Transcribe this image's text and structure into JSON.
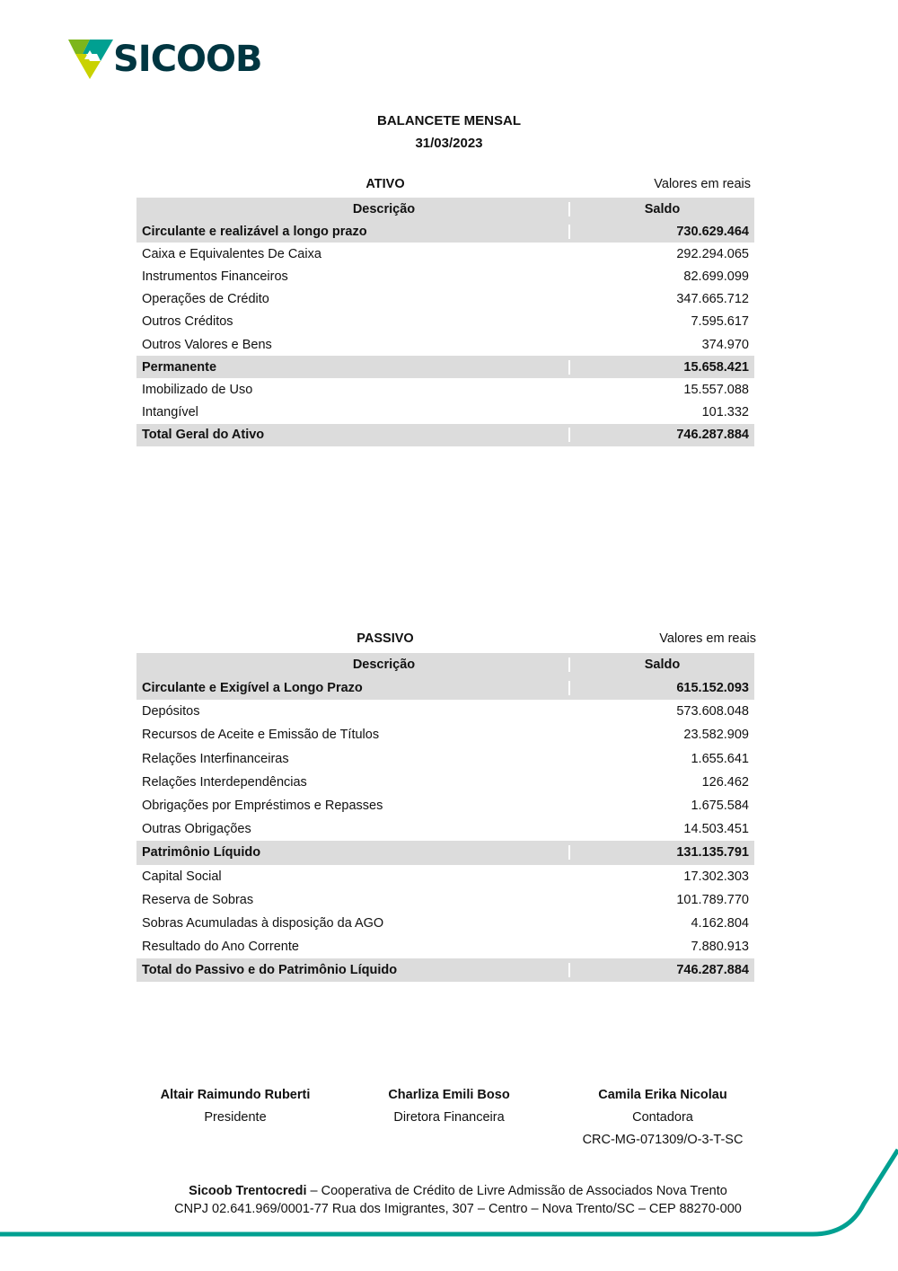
{
  "logo": {
    "text": "SICOOB",
    "colors": {
      "dark": "#003641",
      "teal": "#00a091",
      "green": "#7db61c",
      "lime": "#c9d200"
    }
  },
  "title": {
    "line1": "BALANCETE MENSAL",
    "line2": "31/03/2023"
  },
  "ativo": {
    "caption": "ATIVO",
    "unit": "Valores em reais",
    "headers": {
      "descricao": "Descrição",
      "saldo": "Saldo"
    },
    "rows": [
      {
        "label": "Circulante e realizável a longo prazo",
        "value": "730.629.464",
        "group": true
      },
      {
        "label": "Caixa e Equivalentes De Caixa",
        "value": "292.294.065"
      },
      {
        "label": "Instrumentos Financeiros",
        "value": "82.699.099"
      },
      {
        "label": "Operações de Crédito",
        "value": "347.665.712"
      },
      {
        "label": "Outros Créditos",
        "value": "7.595.617"
      },
      {
        "label": "Outros Valores e Bens",
        "value": "374.970"
      },
      {
        "label": "Permanente",
        "value": "15.658.421",
        "group": true
      },
      {
        "label": "Imobilizado de Uso",
        "value": "15.557.088"
      },
      {
        "label": "Intangível",
        "value": "101.332"
      },
      {
        "label": "Total Geral do Ativo",
        "value": "746.287.884",
        "group": true
      }
    ]
  },
  "passivo": {
    "caption": "PASSIVO",
    "unit": "Valores em reais",
    "headers": {
      "descricao": "Descrição",
      "saldo": "Saldo"
    },
    "rows": [
      {
        "label": "Circulante e Exigível a Longo Prazo",
        "value": "615.152.093",
        "group": true
      },
      {
        "label": "Depósitos",
        "value": "573.608.048"
      },
      {
        "label": "Recursos de Aceite e Emissão de Títulos",
        "value": "23.582.909"
      },
      {
        "label": "Relações Interfinanceiras",
        "value": "1.655.641"
      },
      {
        "label": "Relações Interdependências",
        "value": "126.462"
      },
      {
        "label": "Obrigações por Empréstimos e Repasses",
        "value": "1.675.584"
      },
      {
        "label": "Outras Obrigações",
        "value": "14.503.451"
      },
      {
        "label": "Patrimônio Líquido",
        "value": "131.135.791",
        "group": true
      },
      {
        "label": "Capital Social",
        "value": "17.302.303"
      },
      {
        "label": "Reserva de Sobras",
        "value": "101.789.770"
      },
      {
        "label": "Sobras Acumuladas à disposição da AGO",
        "value": "4.162.804"
      },
      {
        "label": "Resultado do Ano Corrente",
        "value": "7.880.913"
      },
      {
        "label": "Total do Passivo e do Patrimônio Líquido",
        "value": "746.287.884",
        "group": true
      }
    ]
  },
  "signatures": [
    {
      "name": "Altair Raimundo Ruberti",
      "role": "Presidente"
    },
    {
      "name": "Charliza Emili Boso",
      "role": "Diretora Financeira"
    },
    {
      "name": "Camila Erika Nicolau",
      "role": "Contadora",
      "extra": "CRC-MG-071309/O-3-T-SC"
    }
  ],
  "footer": {
    "org": "Sicoob Trentocredi",
    "line1_rest": " – Cooperativa de Crédito de Livre Admissão de Associados Nova Trento",
    "line2": "CNPJ 02.641.969/0001-77 Rua dos Imigrantes, 307 – Centro – Nova Trento/SC – CEP 88270-000",
    "accent": "#00a091"
  }
}
